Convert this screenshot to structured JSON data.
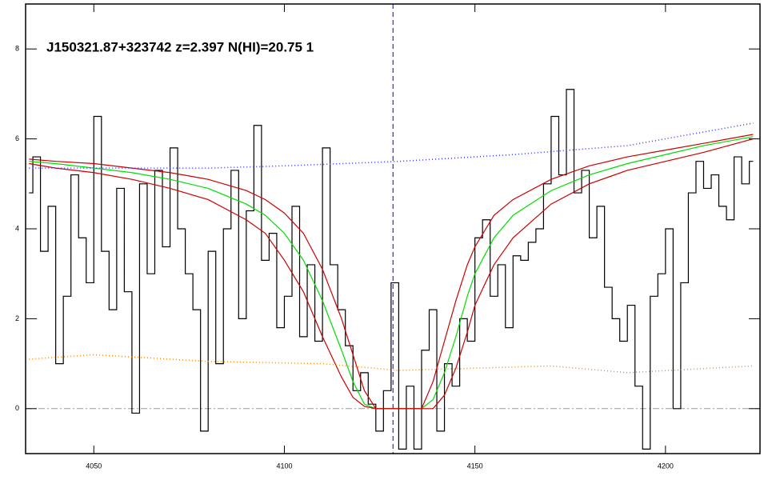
{
  "chart_data": {
    "type": "line",
    "title": "J150321.87+323742 z=2.397 N(HI)=20.75 1",
    "xlim": [
      4032.1,
      4224.8
    ],
    "ylim": [
      -1,
      9
    ],
    "xticks": [
      4050,
      4100,
      4150,
      4200
    ],
    "yticks": [
      0,
      2,
      4,
      6,
      8
    ],
    "vlines": [
      4128.5
    ],
    "hlines": [
      0
    ],
    "series": [
      {
        "color": "#000000",
        "step": true,
        "dash": "none",
        "x": [
          4033,
          4035,
          4037,
          4039,
          4041,
          4043,
          4045,
          4047,
          4049,
          4051,
          4053,
          4055,
          4057,
          4059,
          4061,
          4063,
          4065,
          4067,
          4069,
          4071,
          4073,
          4075,
          4077,
          4079,
          4081,
          4083,
          4085,
          4087,
          4089,
          4091,
          4093,
          4095,
          4097,
          4099,
          4101,
          4103,
          4105,
          4107,
          4109,
          4111,
          4113,
          4115,
          4117,
          4119,
          4121,
          4123,
          4125,
          4127,
          4129,
          4131,
          4133,
          4135,
          4137,
          4139,
          4141,
          4143,
          4145,
          4147,
          4149,
          4151,
          4153,
          4155,
          4157,
          4159,
          4161,
          4163,
          4165,
          4167,
          4169,
          4171,
          4173,
          4175,
          4177,
          4179,
          4181,
          4183,
          4185,
          4187,
          4189,
          4191,
          4193,
          4195,
          4197,
          4199,
          4201,
          4203,
          4205,
          4207,
          4209,
          4211,
          4213,
          4215,
          4217,
          4219,
          4221,
          4223
        ],
        "values": [
          4.8,
          5.6,
          3.5,
          4.5,
          1.0,
          2.5,
          5.2,
          3.8,
          2.8,
          6.5,
          3.5,
          2.2,
          4.9,
          2.6,
          -0.1,
          5.0,
          3.0,
          5.3,
          3.6,
          5.8,
          4.0,
          3.0,
          2.2,
          -0.5,
          3.5,
          1.0,
          4.0,
          5.3,
          2.0,
          4.4,
          6.3,
          3.3,
          3.9,
          1.8,
          2.5,
          4.5,
          1.6,
          3.2,
          1.5,
          5.8,
          3.2,
          2.2,
          1.4,
          0.4,
          0.8,
          0.1,
          -0.5,
          0.4,
          2.8,
          -0.9,
          0.5,
          -0.9,
          1.3,
          2.2,
          -0.5,
          1.0,
          0.5,
          2.0,
          1.5,
          3.8,
          4.2,
          2.5,
          3.2,
          1.8,
          3.4,
          3.3,
          3.7,
          4.0,
          5.0,
          6.5,
          5.2,
          7.1,
          4.8,
          5.3,
          3.8,
          4.5,
          2.7,
          2.0,
          1.5,
          2.3,
          0.5,
          -0.9,
          2.5,
          3.0,
          4.0,
          0.0,
          2.8,
          4.8,
          5.5,
          4.9,
          5.2,
          4.5,
          4.2,
          5.6,
          5.0,
          5.5
        ]
      },
      {
        "color": "#00dd00",
        "step": false,
        "dash": "none",
        "x": [
          4033,
          4040,
          4050,
          4060,
          4070,
          4080,
          4090,
          4095,
          4100,
          4105,
          4110,
          4115,
          4118,
          4121,
          4124,
          4136,
          4139,
          4142,
          4145,
          4148,
          4150,
          4155,
          4160,
          4170,
          4180,
          4190,
          4200,
          4210,
          4223
        ],
        "values": [
          5.5,
          5.45,
          5.35,
          5.25,
          5.1,
          4.9,
          4.55,
          4.3,
          3.9,
          3.3,
          2.4,
          1.3,
          0.6,
          0.1,
          0,
          0,
          0.2,
          0.8,
          1.6,
          2.5,
          3.0,
          3.8,
          4.3,
          4.85,
          5.2,
          5.45,
          5.65,
          5.85,
          6.05
        ]
      },
      {
        "color": "#cc0000",
        "step": false,
        "dash": "none",
        "x": [
          4033,
          4040,
          4050,
          4060,
          4070,
          4080,
          4090,
          4095,
          4100,
          4105,
          4110,
          4115,
          4118,
          4121,
          4124,
          4136,
          4139,
          4142,
          4145,
          4148,
          4150,
          4155,
          4160,
          4170,
          4180,
          4190,
          4200,
          4210,
          4223
        ],
        "values": [
          5.55,
          5.5,
          5.45,
          5.35,
          5.25,
          5.1,
          4.85,
          4.65,
          4.35,
          3.9,
          3.1,
          2.0,
          1.2,
          0.4,
          0,
          0,
          0.6,
          1.5,
          2.4,
          3.2,
          3.6,
          4.3,
          4.65,
          5.1,
          5.4,
          5.6,
          5.75,
          5.9,
          6.1
        ]
      },
      {
        "color": "#cc0000",
        "step": false,
        "dash": "none",
        "x": [
          4033,
          4040,
          4050,
          4060,
          4070,
          4080,
          4090,
          4095,
          4100,
          4105,
          4110,
          4115,
          4118,
          4121,
          4124,
          4136,
          4139,
          4142,
          4145,
          4148,
          4150,
          4155,
          4160,
          4170,
          4180,
          4190,
          4200,
          4210,
          4223
        ],
        "values": [
          5.45,
          5.35,
          5.25,
          5.1,
          4.9,
          4.65,
          4.2,
          3.9,
          3.3,
          2.6,
          1.6,
          0.7,
          0.25,
          0.05,
          0,
          0,
          0,
          0.3,
          0.9,
          1.7,
          2.3,
          3.2,
          3.8,
          4.55,
          5.0,
          5.3,
          5.5,
          5.7,
          6.0
        ]
      },
      {
        "color": "#3333ff",
        "step": false,
        "dash": "1 3",
        "x": [
          4033,
          4080,
          4100,
          4130,
          4160,
          4190,
          4223
        ],
        "values": [
          5.35,
          5.35,
          5.4,
          5.5,
          5.65,
          5.85,
          6.35
        ]
      },
      {
        "color": "#ff8800",
        "step": false,
        "dash": "1 3",
        "x": [
          4033,
          4050,
          4080,
          4110,
          4130,
          4150,
          4170,
          4190,
          4223
        ],
        "values": [
          1.1,
          1.2,
          1.05,
          1.0,
          0.85,
          0.9,
          0.95,
          0.8,
          0.95
        ]
      }
    ]
  }
}
